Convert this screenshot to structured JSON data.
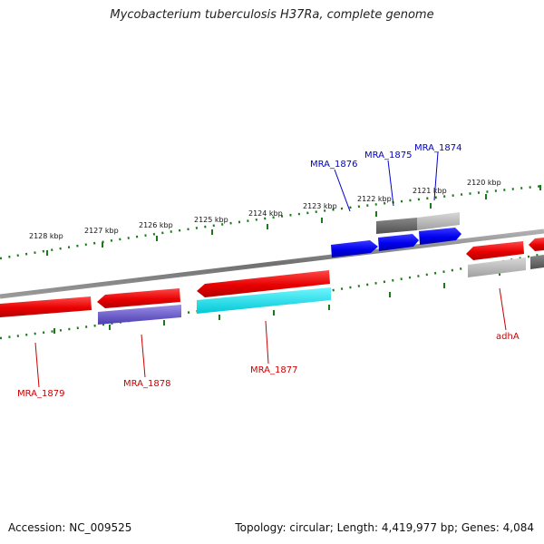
{
  "title": "Mycobacterium tuberculosis H37Ra, complete genome",
  "footer": {
    "accession": "Accession: NC_009525",
    "summary": "Topology: circular; Length: 4,419,977 bp; Genes: 4,084"
  },
  "tick_labels": [
    "2128 kbp",
    "2127 kbp",
    "2126 kbp",
    "2125 kbp",
    "2124 kbp",
    "2123 kbp",
    "2122 kbp",
    "2121 kbp",
    "2120 kbp"
  ],
  "genes_top": [
    "MRA_1876",
    "MRA_1875",
    "MRA_1874"
  ],
  "genes_bottom": [
    "MRA_1879",
    "MRA_1878",
    "MRA_1877",
    "adhA"
  ],
  "colors": {
    "forward_gene": "#0000ee",
    "reverse_gene": "#ee0000",
    "forward_label": "#0000cc",
    "reverse_label": "#cc0000",
    "tick": "#1a7a1a",
    "backbone": "#808080",
    "gray_dark": "#606060",
    "gray_light": "#b8b8b8",
    "cds_cyan": "#00e0e8",
    "cds_purple": "#6a5acd"
  }
}
